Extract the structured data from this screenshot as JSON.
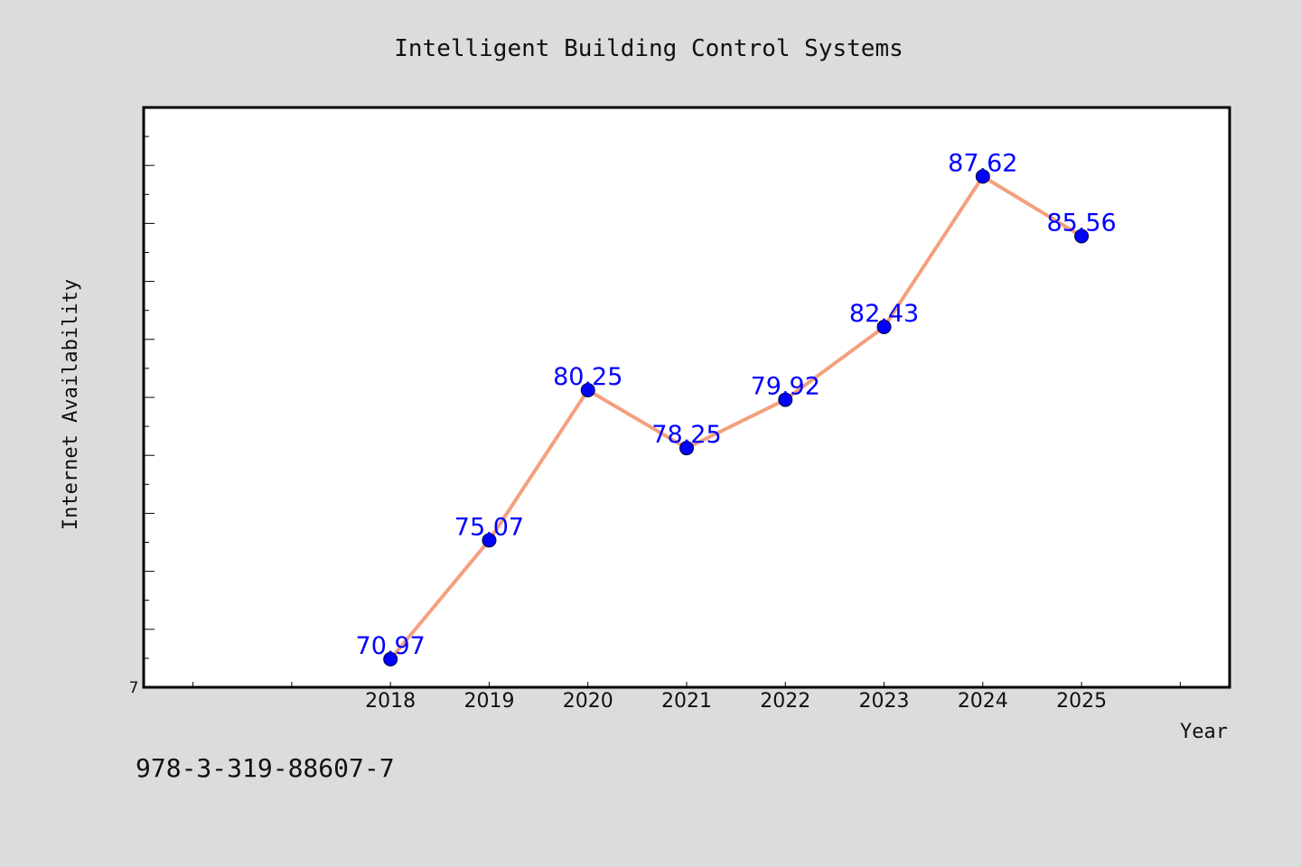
{
  "page": {
    "identifier": "978-3-319-88607-7"
  },
  "chart_data": {
    "type": "line",
    "title": "Intelligent Building Control Systems",
    "xlabel": "Year",
    "ylabel": "Internet Availability",
    "x": [
      "2018",
      "2019",
      "2020",
      "2021",
      "2022",
      "2023",
      "2024",
      "2025"
    ],
    "series": [
      {
        "values": [
          70.97,
          75.07,
          80.25,
          78.25,
          79.92,
          82.43,
          87.62,
          85.56
        ]
      }
    ],
    "data_labels": [
      "70.97",
      "75.07",
      "80.25",
      "78.25",
      "79.92",
      "82.43",
      "87.62",
      "85.56"
    ],
    "y_tick_label": "7",
    "ylim": [
      70,
      90
    ],
    "xlim": [
      2015.5,
      2026.5
    ],
    "grid": false,
    "legend": "none",
    "colors": {
      "line": "#f4a07e",
      "marker": "#0000ff",
      "label": "#0000ff",
      "frame": "#000000",
      "plot_bg": "#ffffff",
      "page_bg": "#dcdcdc"
    }
  }
}
